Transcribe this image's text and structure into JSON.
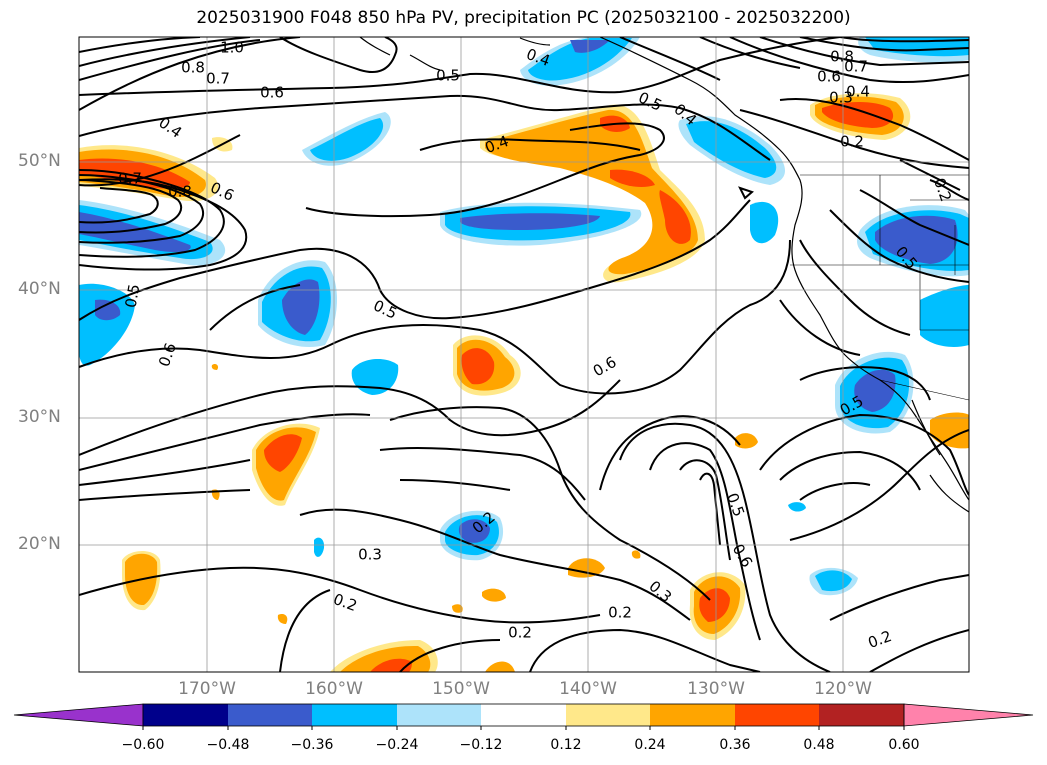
{
  "title": "2025031900 F048 850 hPa PV, precipitation PC (2025032100 - 2025032200)",
  "map": {
    "lat_labels": [
      "50°N",
      "40°N",
      "30°N",
      "20°N"
    ],
    "lon_labels": [
      "170°W",
      "160°W",
      "150°W",
      "140°W",
      "130°W",
      "120°W"
    ]
  },
  "contour_labels": [
    "1.0",
    "0.8",
    "0.7",
    "0.6",
    "0.4",
    "0.5",
    "0.4",
    "0.5",
    "0.4",
    "0.8",
    "0.6",
    "0.7",
    "0.4",
    "0.3",
    "0.2",
    "0.7",
    "0.8",
    "0.6",
    "0.4",
    "0.5",
    "0.5",
    "0.6",
    "0.6",
    "0.5",
    "0.2",
    "0.3",
    "0.2",
    "0.2",
    "0.3",
    "0.5",
    "0.6",
    "0.2",
    "0.2",
    "0.5",
    "0.2"
  ],
  "colorbar": {
    "ticks": [
      "−0.60",
      "−0.48",
      "−0.36",
      "−0.24",
      "−0.12",
      "0.12",
      "0.24",
      "0.36",
      "0.48",
      "0.60"
    ],
    "colors": [
      "#9932CC",
      "#00008B",
      "#3A5BCC",
      "#00BFFF",
      "#ADE3FA",
      "#FFFFFF",
      "#FFE88A",
      "#FFA500",
      "#FF4500",
      "#B22222",
      "#FF82AB"
    ]
  }
}
